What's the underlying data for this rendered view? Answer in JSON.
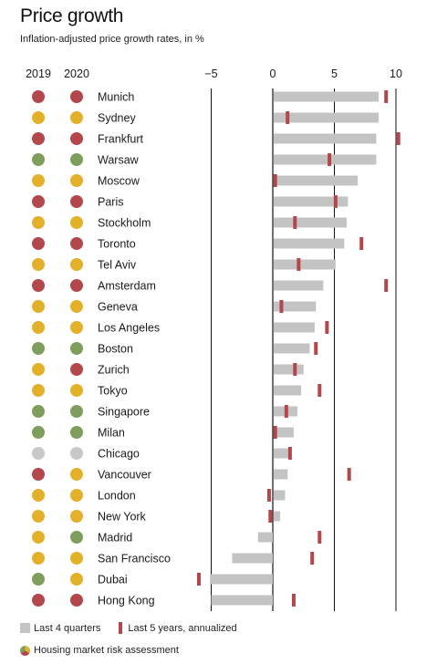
{
  "title": "Price growth",
  "subtitle": "Inflation-adjusted price growth rates, in %",
  "colors": {
    "red": "#b2484c",
    "yellow": "#e3b02a",
    "green": "#7e9f5b",
    "gray": "#c8c8c8",
    "bar": "#c3c3c3"
  },
  "legend": {
    "bar_label": "Last 4 quarters",
    "marker_label": "Last 5 years, annualized",
    "risk_label": "Housing market risk assessment"
  },
  "chart_data": {
    "type": "bar",
    "title": "Price growth",
    "subtitle": "Inflation-adjusted price growth rates, in %",
    "risk_columns": [
      "2019",
      "2020"
    ],
    "xlim": [
      -5,
      10
    ],
    "xticks": [
      -5,
      0,
      5,
      10
    ],
    "xtick_labels": [
      "−5",
      "0",
      "5",
      "10"
    ],
    "categories": [
      "Munich",
      "Sydney",
      "Frankfurt",
      "Warsaw",
      "Moscow",
      "Paris",
      "Stockholm",
      "Toronto",
      "Tel Aviv",
      "Amsterdam",
      "Geneva",
      "Los Angeles",
      "Boston",
      "Zurich",
      "Tokyo",
      "Singapore",
      "Milan",
      "Chicago",
      "Vancouver",
      "London",
      "New York",
      "Madrid",
      "San Francisco",
      "Dubai",
      "Hong Kong"
    ],
    "series": [
      {
        "name": "Last 4 quarters",
        "values": [
          8.6,
          8.6,
          8.4,
          8.4,
          6.9,
          6.1,
          6.0,
          5.8,
          5.1,
          4.1,
          3.5,
          3.4,
          3.0,
          2.5,
          2.3,
          2.0,
          1.7,
          1.5,
          1.2,
          1.0,
          0.6,
          -1.2,
          -3.3,
          -5.1,
          -5.0
        ]
      },
      {
        "name": "Last 5 years, annualized",
        "values": [
          9.2,
          1.2,
          10.2,
          4.6,
          0.2,
          5.1,
          1.8,
          7.2,
          2.1,
          9.2,
          0.7,
          4.4,
          3.5,
          1.8,
          3.8,
          1.1,
          0.2,
          1.4,
          6.2,
          -0.3,
          -0.2,
          3.8,
          3.2,
          -6.0,
          1.7
        ]
      }
    ],
    "risk_2019": [
      "red",
      "yellow",
      "red",
      "green",
      "yellow",
      "red",
      "yellow",
      "red",
      "yellow",
      "red",
      "yellow",
      "yellow",
      "green",
      "yellow",
      "yellow",
      "green",
      "green",
      "gray",
      "red",
      "yellow",
      "yellow",
      "yellow",
      "yellow",
      "green",
      "red"
    ],
    "risk_2020": [
      "red",
      "yellow",
      "red",
      "green",
      "yellow",
      "red",
      "yellow",
      "red",
      "yellow",
      "red",
      "yellow",
      "yellow",
      "green",
      "red",
      "yellow",
      "green",
      "green",
      "gray",
      "yellow",
      "yellow",
      "yellow",
      "green",
      "yellow",
      "yellow",
      "red"
    ]
  }
}
